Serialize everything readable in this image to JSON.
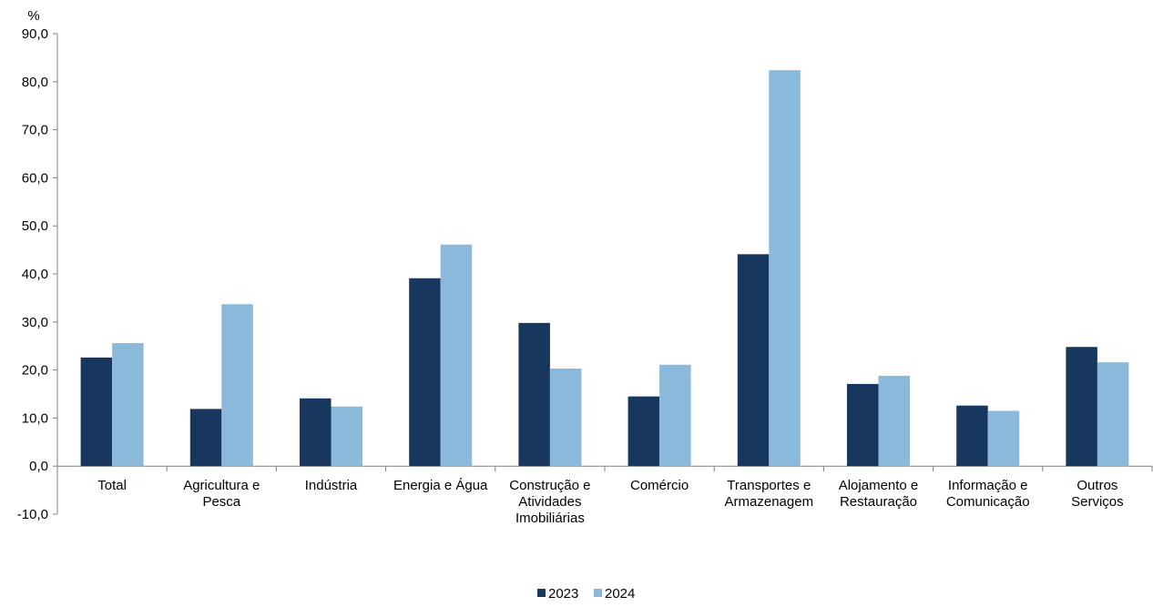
{
  "chart_data": {
    "type": "bar",
    "ylabel": "%",
    "ylim": [
      -10,
      90
    ],
    "yticks": [
      "-10,0",
      "0,0",
      "10,0",
      "20,0",
      "30,0",
      "40,0",
      "50,0",
      "60,0",
      "70,0",
      "80,0",
      "90,0"
    ],
    "categories": [
      [
        "Total"
      ],
      [
        "Agricultura e",
        "Pesca"
      ],
      [
        "Indústria"
      ],
      [
        "Energia e Água"
      ],
      [
        "Construção e",
        "Atividades",
        "Imobiliárias"
      ],
      [
        "Comércio"
      ],
      [
        "Transportes e",
        "Armazenagem"
      ],
      [
        "Alojamento e",
        "Restauração"
      ],
      [
        "Informação e",
        "Comunicação"
      ],
      [
        "Outros",
        "Serviços"
      ]
    ],
    "series": [
      {
        "name": "2023",
        "color": "#17375e",
        "values": [
          22.6,
          11.9,
          14.1,
          39.1,
          29.8,
          14.5,
          44.1,
          17.1,
          12.6,
          24.8
        ]
      },
      {
        "name": "2024",
        "color": "#8bb9dc",
        "values": [
          25.6,
          33.7,
          12.4,
          46.1,
          20.3,
          21.1,
          82.4,
          18.8,
          11.5,
          21.6
        ]
      }
    ],
    "legend_position": "bottom-center",
    "grid": false
  }
}
